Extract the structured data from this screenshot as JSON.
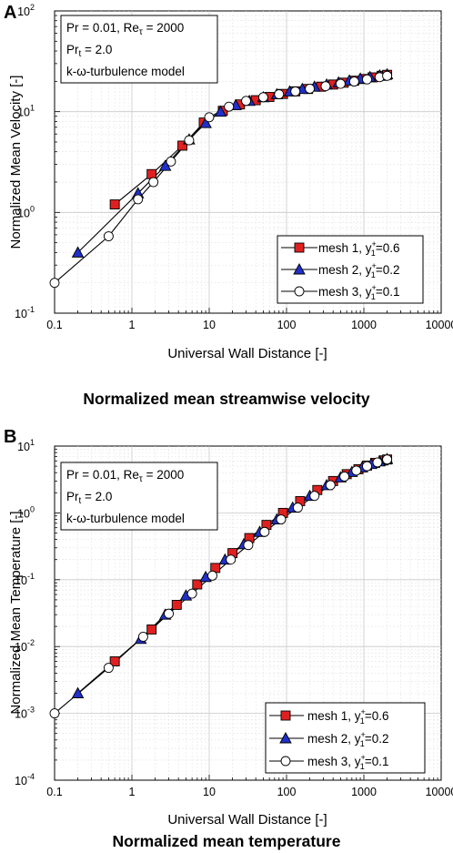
{
  "chart_data": [
    {
      "panel": "A",
      "type": "line",
      "caption": "Normalized mean streamwise velocity",
      "xlabel": "Universal Wall Distance [-]",
      "ylabel": "Normalized Mean Velocity [-]",
      "xscale": "log",
      "yscale": "log",
      "xlim": [
        0.1,
        10000
      ],
      "ylim": [
        0.1,
        100
      ],
      "x_ticks": [
        "0.1",
        "1",
        "10",
        "100",
        "1000",
        "10000"
      ],
      "y_ticks": [
        {
          "base": "10",
          "exp": "-1"
        },
        {
          "base": "10",
          "exp": "0"
        },
        {
          "base": "10",
          "exp": "1"
        },
        {
          "base": "10",
          "exp": "2"
        }
      ],
      "grid": true,
      "legend_position": "bottom-right",
      "annotation": {
        "line1": {
          "pre": "Pr = 0.01, Re",
          "sub": "τ",
          "post": " = 2000"
        },
        "line2": {
          "pre": "Pr",
          "sub": "t",
          "post": " = 2.0"
        },
        "line3": "k-ω-turbulence model"
      },
      "series": [
        {
          "name": "mesh 1, y+1=0.6",
          "legend": {
            "pre": "mesh 1, y",
            "sup": "+",
            "sub": "1",
            "post": "=0.6"
          },
          "marker": "square",
          "color": "#e02020",
          "x": [
            0.6,
            1.8,
            4.5,
            8.5,
            15,
            25,
            40,
            60,
            90,
            130,
            190,
            280,
            400,
            550,
            750,
            1000,
            1300,
            1700,
            2000
          ],
          "y": [
            1.2,
            2.4,
            4.6,
            7.8,
            10.2,
            11.8,
            13.0,
            14.0,
            15.0,
            15.9,
            16.8,
            17.7,
            18.6,
            19.4,
            20.3,
            21.1,
            21.9,
            22.7,
            23.2
          ]
        },
        {
          "name": "mesh 2, y+1=0.2",
          "legend": {
            "pre": "mesh 2, y",
            "sup": "+",
            "sub": "1",
            "post": "=0.2"
          },
          "marker": "triangle",
          "color": "#2030c8",
          "x": [
            0.2,
            1.2,
            2.7,
            5.5,
            9,
            14,
            22,
            33,
            50,
            75,
            110,
            160,
            230,
            330,
            470,
            650,
            900,
            1200,
            1600,
            2000
          ],
          "y": [
            0.4,
            1.55,
            2.9,
            5.3,
            7.7,
            10.0,
            11.6,
            12.8,
            13.9,
            14.9,
            15.9,
            16.8,
            17.7,
            18.6,
            19.5,
            20.4,
            21.3,
            22.1,
            22.9,
            23.5
          ]
        },
        {
          "name": "mesh 3, y+1=0.1",
          "legend": {
            "pre": "mesh 3, y",
            "sup": "+",
            "sub": "1",
            "post": "=0.1"
          },
          "marker": "circle",
          "color": "#ffffff",
          "x": [
            0.1,
            0.5,
            1.2,
            1.9,
            3.2,
            5.5,
            10,
            18,
            30,
            50,
            80,
            130,
            200,
            320,
            500,
            750,
            1100,
            1600,
            2000
          ],
          "y": [
            0.2,
            0.58,
            1.35,
            2.0,
            3.2,
            5.2,
            8.8,
            11.2,
            12.8,
            13.9,
            14.9,
            15.9,
            16.9,
            17.9,
            18.9,
            19.9,
            20.9,
            22.0,
            22.7
          ]
        }
      ]
    },
    {
      "panel": "B",
      "type": "line",
      "caption": "Normalized mean temperature",
      "xlabel": "Universal Wall Distance [-]",
      "ylabel": "Normalized Mean Temperature [-]",
      "xscale": "log",
      "yscale": "log",
      "xlim": [
        0.1,
        10000
      ],
      "ylim": [
        0.0001,
        10
      ],
      "x_ticks": [
        "0.1",
        "1",
        "10",
        "100",
        "1000",
        "10000"
      ],
      "y_ticks": [
        {
          "base": "10",
          "exp": "-4"
        },
        {
          "base": "10",
          "exp": "-3"
        },
        {
          "base": "10",
          "exp": "-2"
        },
        {
          "base": "10",
          "exp": "-1"
        },
        {
          "base": "10",
          "exp": "0"
        },
        {
          "base": "10",
          "exp": "1"
        }
      ],
      "grid": true,
      "legend_position": "bottom-right",
      "annotation": {
        "line1": {
          "pre": "Pr = 0.01, Re",
          "sub": "τ",
          "post": " = 2000"
        },
        "line2": {
          "pre": "Pr",
          "sub": "t",
          "post": " = 2.0"
        },
        "line3": "k-ω-turbulence model"
      },
      "series": [
        {
          "name": "mesh 1, y+1=0.6",
          "legend": {
            "pre": "mesh 1,  y",
            "sup": "+",
            "sub": "1",
            "post": "=0.6"
          },
          "marker": "square",
          "color": "#e02020",
          "x": [
            0.6,
            1.8,
            3.8,
            7,
            12,
            20,
            33,
            55,
            90,
            150,
            250,
            400,
            600,
            850,
            1100,
            1400,
            1800,
            2000
          ],
          "y": [
            0.006,
            0.018,
            0.042,
            0.085,
            0.15,
            0.25,
            0.42,
            0.66,
            1.0,
            1.5,
            2.2,
            3.0,
            3.8,
            4.5,
            5.1,
            5.6,
            6.1,
            6.3
          ]
        },
        {
          "name": "mesh 2, y+1=0.2",
          "legend": {
            "pre": "mesh 2,  y",
            "sup": "+",
            "sub": "1",
            "post": "=0.2"
          },
          "marker": "triangle",
          "color": "#2030c8",
          "x": [
            0.2,
            1.3,
            2.7,
            5,
            9,
            16,
            28,
            45,
            75,
            120,
            200,
            330,
            500,
            700,
            950,
            1250,
            1600,
            2000
          ],
          "y": [
            0.002,
            0.013,
            0.03,
            0.058,
            0.11,
            0.2,
            0.34,
            0.52,
            0.8,
            1.2,
            1.8,
            2.6,
            3.4,
            4.1,
            4.8,
            5.4,
            5.9,
            6.4
          ]
        },
        {
          "name": "mesh 3, y+1=0.1",
          "legend": {
            "pre": "mesh 3,  y",
            "sup": "+",
            "sub": "1",
            "post": "=0.1"
          },
          "marker": "circle",
          "color": "#ffffff",
          "x": [
            0.1,
            0.5,
            1.4,
            3,
            6,
            11,
            19,
            32,
            52,
            85,
            140,
            230,
            370,
            560,
            800,
            1100,
            1500,
            2000
          ],
          "y": [
            0.001,
            0.0048,
            0.014,
            0.031,
            0.062,
            0.115,
            0.2,
            0.33,
            0.52,
            0.8,
            1.2,
            1.8,
            2.6,
            3.5,
            4.3,
            5.0,
            5.7,
            6.3
          ]
        }
      ]
    }
  ]
}
